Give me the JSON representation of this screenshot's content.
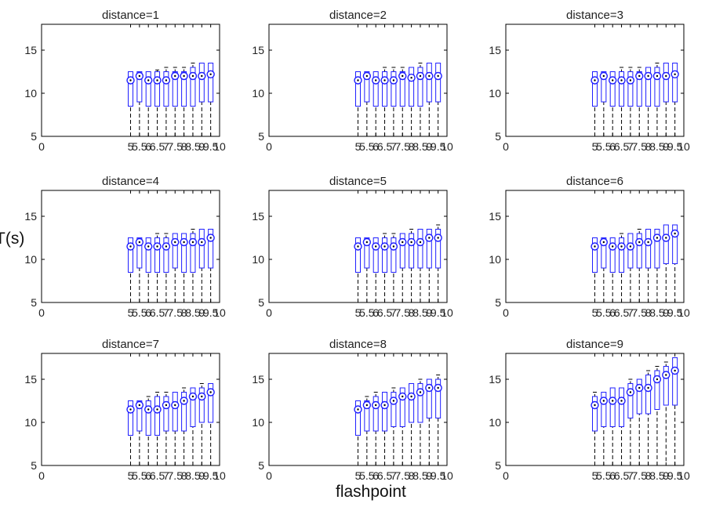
{
  "figure": {
    "xlabel": "flashpoint",
    "ylabel": "T(s)"
  },
  "colors": {
    "box": "#1f1fff",
    "whisker": "#000000",
    "axes": "#000000",
    "text": "#222222"
  },
  "chart_data": [
    {
      "type": "box",
      "title": "distance=1",
      "x_ticks": [
        "0",
        "5",
        "5.5",
        "6",
        "6.5",
        "7",
        "7.5",
        "8",
        "8.5",
        "9",
        "9.5",
        "10"
      ],
      "y_ticks": [
        "5",
        "10",
        "15"
      ],
      "ylim": [
        5,
        18
      ],
      "categories": [
        "5",
        "5.5",
        "6",
        "6.5",
        "7",
        "7.5",
        "8",
        "8.5",
        "9",
        "9.5"
      ],
      "series": [
        {
          "low": [
            5,
            5,
            5,
            5,
            5,
            5,
            5,
            5,
            5,
            5
          ],
          "q1": [
            8.5,
            9,
            8.5,
            8.5,
            8.5,
            8.5,
            8.5,
            8.5,
            9,
            9
          ],
          "median": [
            11.5,
            12,
            11.5,
            11.5,
            11.5,
            12,
            12,
            12,
            12,
            12.2
          ],
          "q3": [
            12.5,
            12.5,
            12.5,
            12.5,
            12.5,
            12.5,
            12.5,
            13,
            13.5,
            13.5
          ],
          "high": [
            12.5,
            12.5,
            12.5,
            12.7,
            13,
            13,
            13,
            13.5,
            13.5,
            13.5
          ]
        }
      ]
    },
    {
      "type": "box",
      "title": "distance=2",
      "x_ticks": [
        "0",
        "5",
        "5.5",
        "6",
        "6.5",
        "7",
        "7.5",
        "8",
        "8.5",
        "9",
        "9.5",
        "10"
      ],
      "y_ticks": [
        "5",
        "10",
        "15"
      ],
      "ylim": [
        5,
        18
      ],
      "categories": [
        "5",
        "5.5",
        "6",
        "6.5",
        "7",
        "7.5",
        "8",
        "8.5",
        "9",
        "9.5"
      ],
      "series": [
        {
          "low": [
            5,
            5,
            5,
            5,
            5,
            5,
            5,
            5,
            5,
            5
          ],
          "q1": [
            8.5,
            9,
            8.5,
            8.5,
            8.5,
            8.5,
            8.5,
            8.5,
            9,
            9
          ],
          "median": [
            11.5,
            12,
            11.5,
            11.5,
            11.5,
            12,
            11.8,
            12,
            12,
            12
          ],
          "q3": [
            12.5,
            12.5,
            12.5,
            12.5,
            12.5,
            12.5,
            13,
            13,
            13.5,
            13.5
          ],
          "high": [
            12.5,
            12.5,
            12.5,
            13,
            13,
            13,
            13,
            13.5,
            13.5,
            13.5
          ]
        }
      ]
    },
    {
      "type": "box",
      "title": "distance=3",
      "x_ticks": [
        "0",
        "5",
        "5.5",
        "6",
        "6.5",
        "7",
        "7.5",
        "8",
        "8.5",
        "9",
        "9.5",
        "10"
      ],
      "y_ticks": [
        "5",
        "10",
        "15"
      ],
      "ylim": [
        5,
        18
      ],
      "categories": [
        "5",
        "5.5",
        "6",
        "6.5",
        "7",
        "7.5",
        "8",
        "8.5",
        "9",
        "9.5"
      ],
      "series": [
        {
          "low": [
            5,
            5,
            5,
            5,
            5,
            5,
            5,
            5,
            5,
            5
          ],
          "q1": [
            8.5,
            9,
            8.5,
            8.5,
            8.5,
            8.5,
            8.5,
            8.5,
            9,
            9
          ],
          "median": [
            11.5,
            12,
            11.5,
            11.5,
            11.5,
            12,
            12,
            12,
            12,
            12.2
          ],
          "q3": [
            12.5,
            12.5,
            12.5,
            12.5,
            12.5,
            12.5,
            13,
            13,
            13.5,
            13.5
          ],
          "high": [
            12.5,
            12.5,
            12.5,
            13,
            13,
            13,
            13,
            13.5,
            13.5,
            13.5
          ]
        }
      ]
    },
    {
      "type": "box",
      "title": "distance=4",
      "x_ticks": [
        "0",
        "5",
        "5.5",
        "6",
        "6.5",
        "7",
        "7.5",
        "8",
        "8.5",
        "9",
        "9.5",
        "10"
      ],
      "y_ticks": [
        "5",
        "10",
        "15"
      ],
      "ylim": [
        5,
        18
      ],
      "categories": [
        "5",
        "5.5",
        "6",
        "6.5",
        "7",
        "7.5",
        "8",
        "8.5",
        "9",
        "9.5"
      ],
      "series": [
        {
          "low": [
            5,
            5,
            5,
            5,
            5,
            5,
            5,
            5,
            5,
            5
          ],
          "q1": [
            8.5,
            9,
            8.5,
            8.5,
            8.5,
            9,
            8.5,
            8.5,
            9,
            9
          ],
          "median": [
            11.5,
            12,
            11.5,
            11.5,
            11.5,
            12,
            12,
            12,
            12,
            12.5
          ],
          "q3": [
            12.5,
            12.5,
            12.5,
            12.5,
            12.5,
            13,
            13,
            13,
            13.5,
            13.5
          ],
          "high": [
            12.5,
            12.5,
            12.5,
            13,
            13,
            13,
            13,
            13.5,
            13.5,
            13.5
          ]
        }
      ]
    },
    {
      "type": "box",
      "title": "distance=5",
      "x_ticks": [
        "0",
        "5",
        "5.5",
        "6",
        "6.5",
        "7",
        "7.5",
        "8",
        "8.5",
        "9",
        "9.5",
        "10"
      ],
      "y_ticks": [
        "5",
        "10",
        "15"
      ],
      "ylim": [
        5,
        18
      ],
      "categories": [
        "5",
        "5.5",
        "6",
        "6.5",
        "7",
        "7.5",
        "8",
        "8.5",
        "9",
        "9.5"
      ],
      "series": [
        {
          "low": [
            5,
            5,
            5,
            5,
            5,
            5,
            5,
            5,
            5,
            5
          ],
          "q1": [
            8.5,
            9,
            8.5,
            8.5,
            8.5,
            9,
            9,
            9,
            9,
            9
          ],
          "median": [
            11.5,
            12,
            11.5,
            11.5,
            11.5,
            12,
            12,
            12,
            12.5,
            12.5
          ],
          "q3": [
            12.5,
            12.5,
            12.5,
            12.5,
            12.5,
            13,
            13,
            13.5,
            13.5,
            13.5
          ],
          "high": [
            12.5,
            12.5,
            12.5,
            13,
            13,
            13,
            13.5,
            13.5,
            13.5,
            14
          ]
        }
      ]
    },
    {
      "type": "box",
      "title": "distance=6",
      "x_ticks": [
        "0",
        "5",
        "5.5",
        "6",
        "6.5",
        "7",
        "7.5",
        "8",
        "8.5",
        "9",
        "9.5",
        "10"
      ],
      "y_ticks": [
        "5",
        "10",
        "15"
      ],
      "ylim": [
        5,
        18
      ],
      "categories": [
        "5",
        "5.5",
        "6",
        "6.5",
        "7",
        "7.5",
        "8",
        "8.5",
        "9",
        "9.5"
      ],
      "series": [
        {
          "low": [
            5,
            5,
            5,
            5,
            5,
            5,
            5,
            5,
            5,
            5
          ],
          "q1": [
            8.5,
            9,
            8.5,
            8.5,
            9,
            9,
            9,
            9,
            9.5,
            9.5
          ],
          "median": [
            11.5,
            12,
            11.5,
            11.5,
            11.5,
            12,
            12,
            12.5,
            12.5,
            13
          ],
          "q3": [
            12.5,
            12.5,
            12.5,
            12.5,
            13,
            13,
            13.5,
            13.5,
            14,
            14
          ],
          "high": [
            12.5,
            12.5,
            12.5,
            13,
            13,
            13.5,
            13.5,
            13.5,
            14,
            14
          ]
        }
      ]
    },
    {
      "type": "box",
      "title": "distance=7",
      "x_ticks": [
        "0",
        "5",
        "5.5",
        "6",
        "6.5",
        "7",
        "7.5",
        "8",
        "8.5",
        "9",
        "9.5",
        "10"
      ],
      "y_ticks": [
        "5",
        "10",
        "15"
      ],
      "ylim": [
        5,
        18
      ],
      "categories": [
        "5",
        "5.5",
        "6",
        "6.5",
        "7",
        "7.5",
        "8",
        "8.5",
        "9",
        "9.5"
      ],
      "series": [
        {
          "low": [
            5,
            5,
            5,
            5,
            5,
            5,
            5,
            5,
            5,
            5
          ],
          "q1": [
            8.5,
            9,
            8.5,
            8.5,
            9,
            9,
            9,
            9.5,
            10,
            10
          ],
          "median": [
            11.5,
            12,
            11.5,
            11.5,
            12,
            12,
            12.5,
            13,
            13,
            13.5
          ],
          "q3": [
            12.5,
            12.5,
            12.5,
            13,
            13,
            13.5,
            13.5,
            14,
            14,
            14.5
          ],
          "high": [
            12.5,
            12.5,
            13,
            13.5,
            13.5,
            13.5,
            14,
            14,
            14.5,
            14.5
          ]
        }
      ]
    },
    {
      "type": "box",
      "title": "distance=8",
      "x_ticks": [
        "0",
        "5",
        "5.5",
        "6",
        "6.5",
        "7",
        "7.5",
        "8",
        "8.5",
        "9",
        "9.5",
        "10"
      ],
      "y_ticks": [
        "5",
        "10",
        "15"
      ],
      "ylim": [
        5,
        18
      ],
      "categories": [
        "5",
        "5.5",
        "6",
        "6.5",
        "7",
        "7.5",
        "8",
        "8.5",
        "9",
        "9.5"
      ],
      "series": [
        {
          "low": [
            5,
            5,
            5,
            5,
            5,
            5,
            5,
            5,
            5,
            5
          ],
          "q1": [
            8.5,
            9,
            9,
            9,
            9.5,
            9.5,
            10,
            10,
            10.5,
            10.5
          ],
          "median": [
            11.5,
            12,
            12,
            12,
            12.5,
            13,
            13,
            13.5,
            14,
            14
          ],
          "q3": [
            12.5,
            12.5,
            13,
            13.5,
            13.5,
            14,
            14.5,
            14.5,
            15,
            15
          ],
          "high": [
            12.5,
            13,
            13.5,
            13.5,
            14,
            14,
            14.5,
            15,
            15,
            15.5
          ]
        }
      ]
    },
    {
      "type": "box",
      "title": "distance=9",
      "x_ticks": [
        "0",
        "5",
        "5.5",
        "6",
        "6.5",
        "7",
        "7.5",
        "8",
        "8.5",
        "9",
        "9.5",
        "10"
      ],
      "y_ticks": [
        "5",
        "10",
        "15"
      ],
      "ylim": [
        5,
        18
      ],
      "categories": [
        "5",
        "5.5",
        "6",
        "6.5",
        "7",
        "7.5",
        "8",
        "8.5",
        "9",
        "9.5"
      ],
      "series": [
        {
          "low": [
            5,
            5,
            5,
            5,
            5,
            5,
            5,
            5,
            5.5,
            5
          ],
          "q1": [
            9,
            9.5,
            9.5,
            9.5,
            10.5,
            11,
            11,
            11.5,
            12,
            12
          ],
          "median": [
            12,
            12.5,
            12.5,
            12.5,
            13.5,
            14,
            14,
            15,
            15.5,
            16
          ],
          "q3": [
            13,
            13.5,
            14,
            14,
            14.5,
            15,
            15.5,
            16,
            16.5,
            17.5
          ],
          "high": [
            13.5,
            13.5,
            14,
            14,
            15,
            15,
            16,
            16.5,
            17,
            17.5
          ]
        }
      ]
    }
  ]
}
